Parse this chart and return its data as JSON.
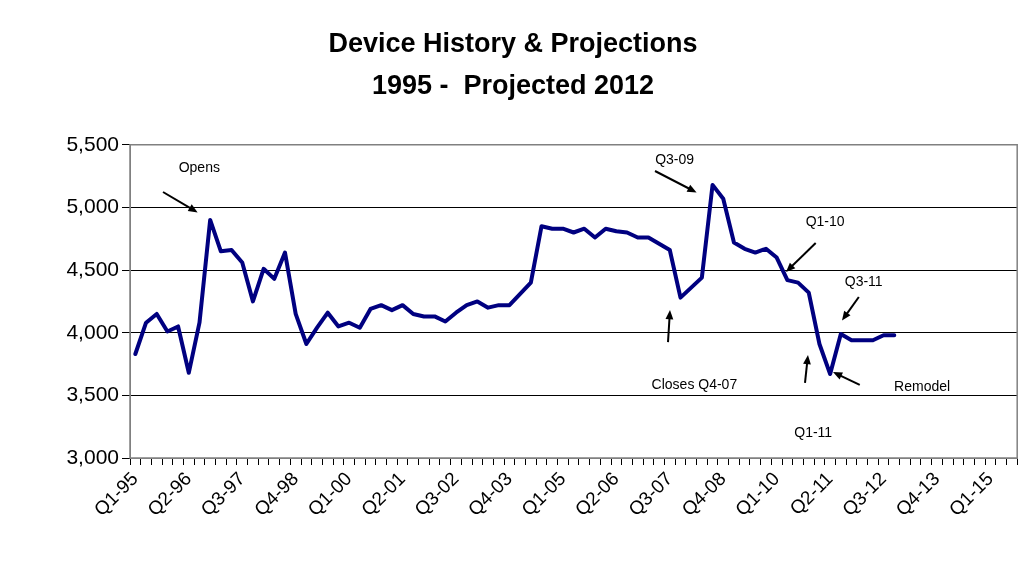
{
  "chart_data": {
    "type": "line",
    "title": "Device History & Projections",
    "subtitle": "1995 -  Projected 2012",
    "categories": [
      "Q1-95",
      null,
      null,
      null,
      null,
      "Q2-96",
      null,
      null,
      null,
      null,
      "Q3-97",
      null,
      null,
      null,
      null,
      "Q4-98",
      null,
      null,
      null,
      null,
      "Q1-00",
      null,
      null,
      null,
      null,
      "Q2-01",
      null,
      null,
      null,
      null,
      "Q3-02",
      null,
      null,
      null,
      null,
      "Q4-03",
      null,
      null,
      null,
      null,
      "Q1-05",
      null,
      null,
      null,
      null,
      "Q2-06",
      null,
      null,
      null,
      null,
      "Q3-07",
      null,
      null,
      null,
      null,
      "Q4-08",
      null,
      null,
      null,
      null,
      "Q1-10",
      null,
      null,
      null,
      null,
      "Q2-11",
      null,
      null,
      null,
      null,
      "Q3-12",
      null,
      null,
      null,
      null,
      "Q4-13",
      null,
      null,
      null,
      null,
      "Q1-15",
      null,
      null
    ],
    "series": [
      {
        "color": "#000080",
        "values": [
          3830,
          4080,
          4150,
          4010,
          4050,
          3680,
          4080,
          4900,
          4650,
          4660,
          4560,
          4250,
          4510,
          4430,
          4640,
          4150,
          3910,
          4040,
          4160,
          4050,
          4080,
          4040,
          4190,
          4220,
          4180,
          4220,
          4150,
          4130,
          4130,
          4090,
          4160,
          4220,
          4250,
          4200,
          4220,
          4220,
          4310,
          4400,
          4850,
          4830,
          4830,
          4800,
          4830,
          4760,
          4830,
          4810,
          4800,
          4760,
          4760,
          4710,
          4660,
          4280,
          4360,
          4440,
          5180,
          5070,
          4720,
          4670,
          4640,
          4670,
          4600,
          4420,
          4400,
          4320,
          3910,
          3670,
          3990,
          3940,
          3940,
          3940,
          3980,
          3980,
          null,
          null,
          null,
          null,
          null,
          null,
          null,
          null,
          null,
          null,
          null
        ]
      }
    ],
    "ylim": [
      3000,
      5500
    ],
    "yticks": [
      {
        "value": 3000,
        "label": "3,000"
      },
      {
        "value": 3500,
        "label": "3,500"
      },
      {
        "value": 4000,
        "label": "4,000"
      },
      {
        "value": 4500,
        "label": "4,500"
      },
      {
        "value": 5000,
        "label": "5,000"
      },
      {
        "value": 5500,
        "label": "5,500"
      }
    ],
    "grid": "y",
    "marker": "none",
    "line_style": "solid",
    "legend": false,
    "annotations": [
      "Opens",
      "Q3-09",
      "Closes Q4-07",
      "Q1-10",
      "Q3-11",
      "Remodel",
      "Q1-11"
    ]
  }
}
